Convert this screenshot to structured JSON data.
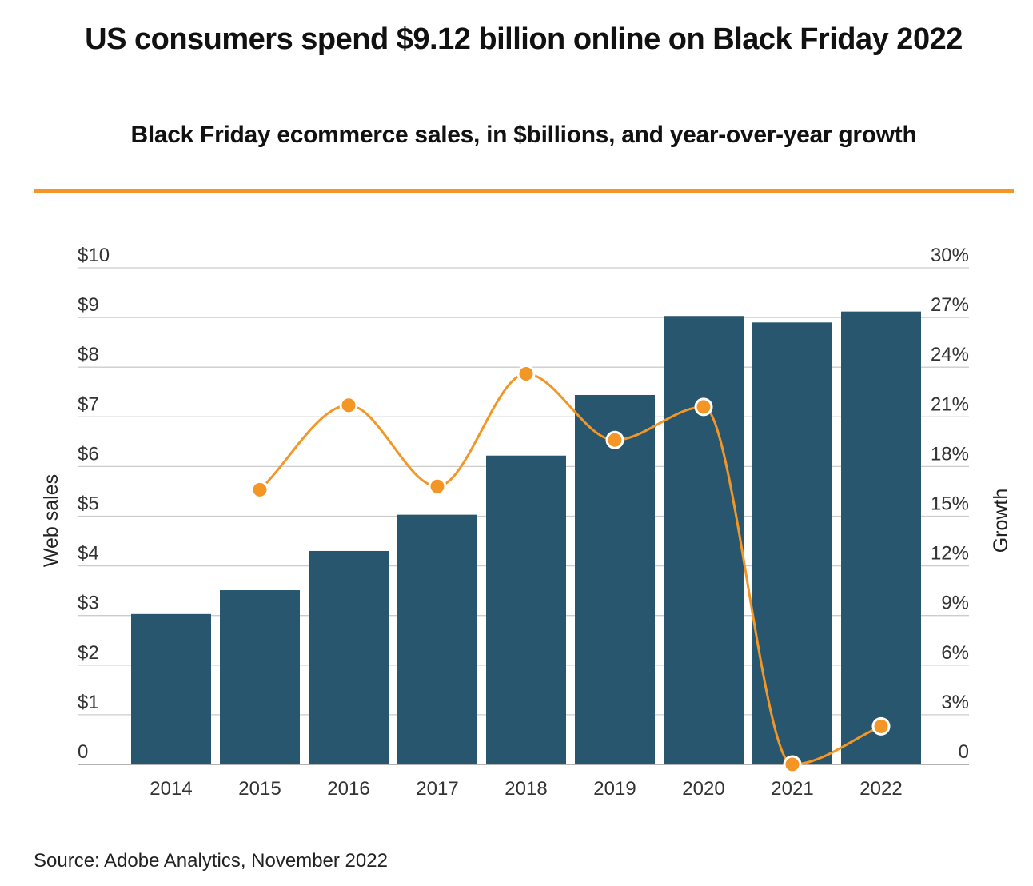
{
  "title": "US consumers spend $9.12 billion online on Black Friday 2022",
  "subtitle": "Black Friday ecommerce sales, in $billions, and year-over-year growth",
  "source": "Source: Adobe Analytics, November 2022",
  "colors": {
    "bar": "#27566e",
    "line": "#f39625",
    "accent_rule": "#f39625",
    "grid": "#cccccc"
  },
  "chart_data": {
    "type": "bar",
    "categories": [
      "2014",
      "2015",
      "2016",
      "2017",
      "2018",
      "2019",
      "2020",
      "2021",
      "2022"
    ],
    "series": [
      {
        "name": "Web sales",
        "type": "bar",
        "axis": "left",
        "values": [
          3.03,
          3.51,
          4.3,
          5.03,
          6.22,
          7.44,
          9.03,
          8.9,
          9.12
        ]
      },
      {
        "name": "Growth",
        "type": "line",
        "axis": "right",
        "values": [
          null,
          16.6,
          21.7,
          16.8,
          23.6,
          19.6,
          21.6,
          0.0,
          2.3
        ]
      }
    ],
    "ylabel": "Web sales",
    "ylabel_right": "Growth",
    "ylim": [
      0,
      10
    ],
    "ylim_right": [
      0,
      30
    ],
    "yticks": [
      "0",
      "$1",
      "$2",
      "$3",
      "$4",
      "$5",
      "$6",
      "$7",
      "$8",
      "$9",
      "$10"
    ],
    "yticks_right": [
      "0",
      "3%",
      "6%",
      "9%",
      "12%",
      "15%",
      "18%",
      "21%",
      "24%",
      "27%",
      "30%"
    ],
    "grid": true,
    "legend": "none"
  }
}
